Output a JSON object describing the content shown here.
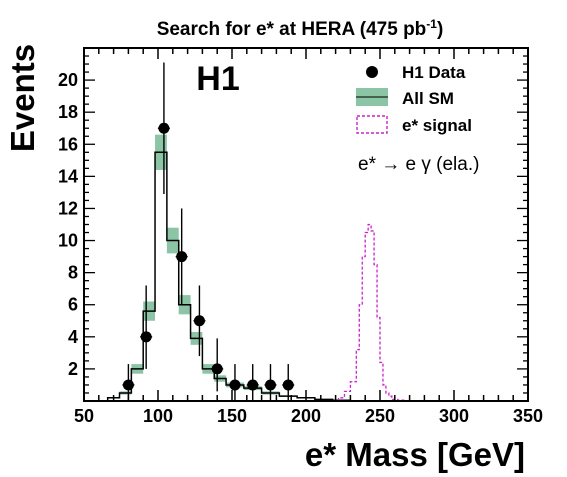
{
  "chart_data": {
    "type": "histogram",
    "title": "Search for e* at HERA (475 pb",
    "title_sup": "-1",
    "title_close": ")",
    "experiment": "H1",
    "xlabel": "e* Mass [GeV]",
    "ylabel": "Events",
    "xlim": [
      50,
      350
    ],
    "ylim": [
      0,
      22
    ],
    "x_ticks": [
      50,
      100,
      150,
      200,
      250,
      300,
      350
    ],
    "x_tick_labels": [
      "50",
      "100",
      "150",
      "200",
      "250",
      "300",
      "350"
    ],
    "y_ticks": [
      2,
      4,
      6,
      8,
      10,
      12,
      14,
      16,
      18,
      20
    ],
    "y_tick_labels": [
      "2",
      "4",
      "6",
      "8",
      "10",
      "12",
      "14",
      "16",
      "18",
      "20"
    ],
    "channel_label": "e* → e γ (ela.)",
    "legend": {
      "position": "top-right",
      "entries": [
        {
          "label": "H1 Data",
          "kind": "marker"
        },
        {
          "label": "All SM",
          "kind": "band"
        },
        {
          "label": "e* signal",
          "kind": "dashed"
        }
      ]
    },
    "colors": {
      "data": "#000000",
      "sm_band": "#8cc5a5",
      "sm_line": "#000000",
      "signal": "#cc22cc"
    },
    "sm_bin_edges": [
      66,
      74,
      82,
      90,
      98,
      106,
      114,
      122,
      130,
      138,
      146,
      158,
      170,
      182,
      194,
      206,
      218,
      230
    ],
    "sm_values": [
      0.2,
      0.5,
      2.0,
      5.6,
      15.5,
      10.0,
      6.0,
      3.9,
      2.0,
      1.4,
      1.0,
      0.8,
      0.5,
      0.3,
      0.2,
      0.1,
      0.05
    ],
    "sm_errors": [
      0.05,
      0.1,
      0.3,
      0.6,
      1.1,
      0.8,
      0.6,
      0.4,
      0.3,
      0.2,
      0.15,
      0.12,
      0.1,
      0.05,
      0.04,
      0.02,
      0.01
    ],
    "data_points": [
      {
        "x": 80,
        "y": 1,
        "err_low": 1.0,
        "err_high": 1.3
      },
      {
        "x": 92,
        "y": 4,
        "err_low": 2.0,
        "err_high": 3.2
      },
      {
        "x": 104,
        "y": 17,
        "err_low": 4.1,
        "err_high": 4.1
      },
      {
        "x": 116,
        "y": 9,
        "err_low": 3.0,
        "err_high": 3.0
      },
      {
        "x": 128,
        "y": 5,
        "err_low": 2.2,
        "err_high": 2.2
      },
      {
        "x": 140,
        "y": 2,
        "err_low": 1.4,
        "err_high": 1.9
      },
      {
        "x": 152,
        "y": 1,
        "err_low": 1.0,
        "err_high": 1.3
      },
      {
        "x": 164,
        "y": 1,
        "err_low": 1.0,
        "err_high": 1.3
      },
      {
        "x": 176,
        "y": 1,
        "err_low": 1.0,
        "err_high": 1.3
      },
      {
        "x": 188,
        "y": 1,
        "err_low": 1.0,
        "err_high": 1.3
      }
    ],
    "signal_bin_edges": [
      222,
      226,
      230,
      234,
      236,
      238,
      240,
      242,
      244,
      246,
      248,
      250,
      252,
      254,
      256,
      258,
      262,
      266
    ],
    "signal_values": [
      0.2,
      0.6,
      1.2,
      3.2,
      6.0,
      9.0,
      10.5,
      11.0,
      10.6,
      8.5,
      5.2,
      2.4,
      1.0,
      0.5,
      0.3,
      0.1,
      0.05
    ]
  }
}
